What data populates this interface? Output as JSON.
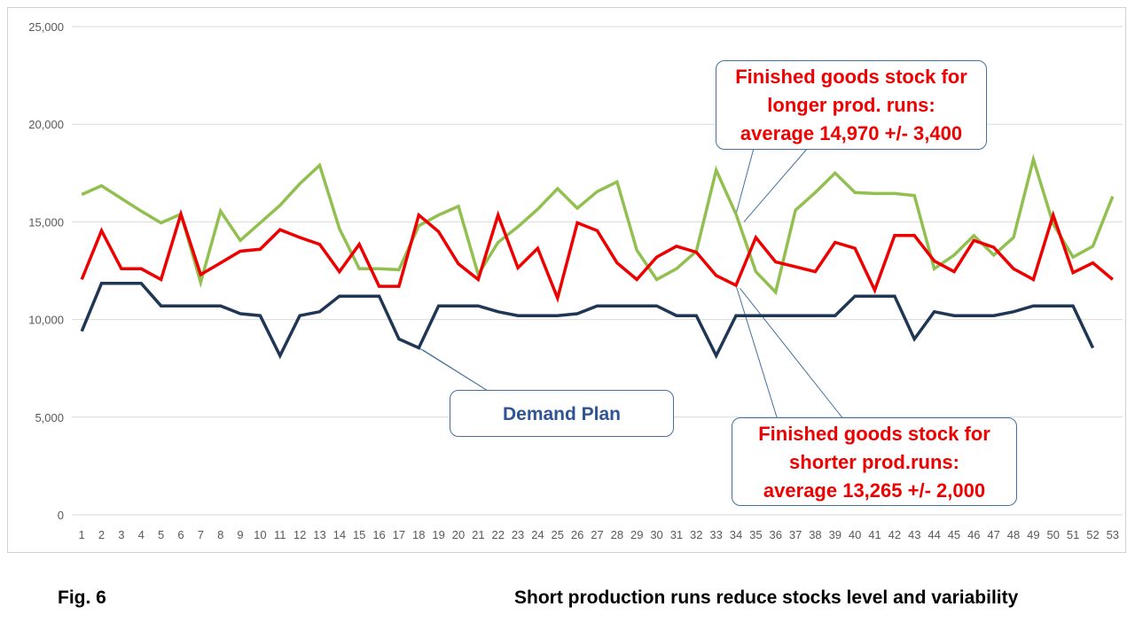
{
  "chart_data": {
    "type": "line",
    "x": [
      1,
      2,
      3,
      4,
      5,
      6,
      7,
      8,
      9,
      10,
      11,
      12,
      13,
      14,
      15,
      16,
      17,
      18,
      19,
      20,
      21,
      22,
      23,
      24,
      25,
      26,
      27,
      28,
      29,
      30,
      31,
      32,
      33,
      34,
      35,
      36,
      37,
      38,
      39,
      40,
      41,
      42,
      43,
      44,
      45,
      46,
      47,
      48,
      49,
      50,
      51,
      52,
      53
    ],
    "ylim": [
      0,
      25000
    ],
    "yticks": [
      "0",
      "5,000",
      "10,000",
      "15,000",
      "20,000",
      "25,000"
    ],
    "yticks_values": [
      0,
      5000,
      10000,
      15000,
      20000,
      25000
    ],
    "grid": true,
    "legend": "none",
    "series": [
      {
        "key": "long",
        "color": "#92c050",
        "values": [
          16400,
          16850,
          16200,
          15550,
          14950,
          15400,
          11900,
          15550,
          14050,
          14950,
          15850,
          16950,
          17900,
          14650,
          12600,
          12600,
          12550,
          14800,
          15350,
          15800,
          12300,
          13950,
          14750,
          15650,
          16700,
          15700,
          16550,
          17050,
          13550,
          12050,
          12600,
          13500,
          17650,
          15400,
          12450,
          11400,
          15600,
          16500,
          17500,
          16500,
          16450,
          16450,
          16350,
          12600,
          13300,
          14300,
          13300,
          14200,
          18200,
          14900,
          13200,
          13750,
          16300
        ]
      },
      {
        "key": "short",
        "color": "#ee0000",
        "values": [
          12050,
          14550,
          12600,
          12600,
          12050,
          15400,
          12300,
          12900,
          13500,
          13600,
          14600,
          14200,
          13850,
          12450,
          13850,
          11700,
          11700,
          15350,
          14500,
          12850,
          12050,
          15350,
          12650,
          13650,
          11100,
          14950,
          14550,
          12900,
          12050,
          13200,
          13750,
          13450,
          12250,
          11750,
          14200,
          12950,
          12700,
          12450,
          13950,
          13650,
          11500,
          14300,
          14300,
          13000,
          12450,
          14050,
          13700,
          12600,
          12050,
          15350,
          12400,
          12900,
          12050
        ]
      },
      {
        "key": "demand",
        "color": "#1f3755",
        "values": [
          9400,
          11850,
          11850,
          11850,
          10700,
          10700,
          10700,
          10700,
          10300,
          10200,
          8150,
          10200,
          10400,
          11200,
          11200,
          11200,
          9000,
          8550,
          10700,
          10700,
          10700,
          10400,
          10200,
          10200,
          10200,
          10300,
          10700,
          10700,
          10700,
          10700,
          10200,
          10200,
          8150,
          10200,
          10200,
          10200,
          10200,
          10200,
          10200,
          11200,
          11200,
          11200,
          9000,
          10400,
          10200,
          10200,
          10200,
          10400,
          10700,
          10700,
          10700,
          8550,
          null
        ]
      }
    ],
    "annotations": [
      {
        "key": "long",
        "lines": [
          "Finished goods stock for",
          "longer prod. runs:",
          "average 14,970 +/- 3,400"
        ],
        "points": [
          {
            "x": 34,
            "y": 15400
          },
          {
            "x": 34.4,
            "y": 15000
          }
        ]
      },
      {
        "key": "short",
        "lines": [
          "Finished goods stock for",
          "shorter prod.runs:",
          "average 13,265 +/- 2,000"
        ],
        "points": [
          {
            "x": 34,
            "y": 11750
          },
          {
            "x": 34.2,
            "y": 11600
          }
        ]
      },
      {
        "key": "demand",
        "lines": [
          "Demand Plan"
        ],
        "points": [
          {
            "x": 18,
            "y": 8550
          },
          {
            "x": 18.2,
            "y": 8450
          }
        ]
      }
    ]
  },
  "caption": {
    "fig_label": "Fig. 6",
    "title": "Short production runs reduce stocks level and variability"
  }
}
